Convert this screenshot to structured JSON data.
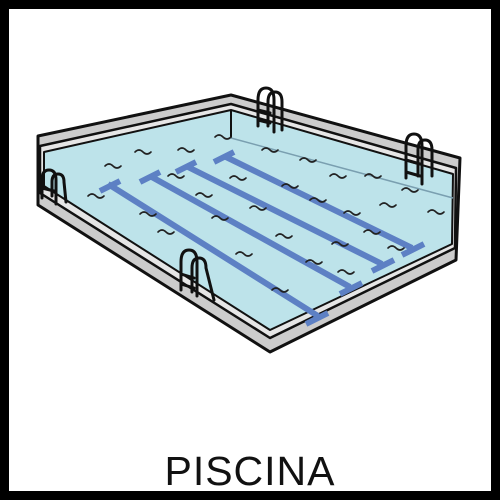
{
  "card": {
    "label": "PISCINA",
    "pictogram": "swimming-pool-icon"
  },
  "colors": {
    "frame": "#000000",
    "water": "#bde3ea",
    "lane_lines": "#5d80c4",
    "pool_deck": "#c8c8c8",
    "outline": "#111111"
  }
}
